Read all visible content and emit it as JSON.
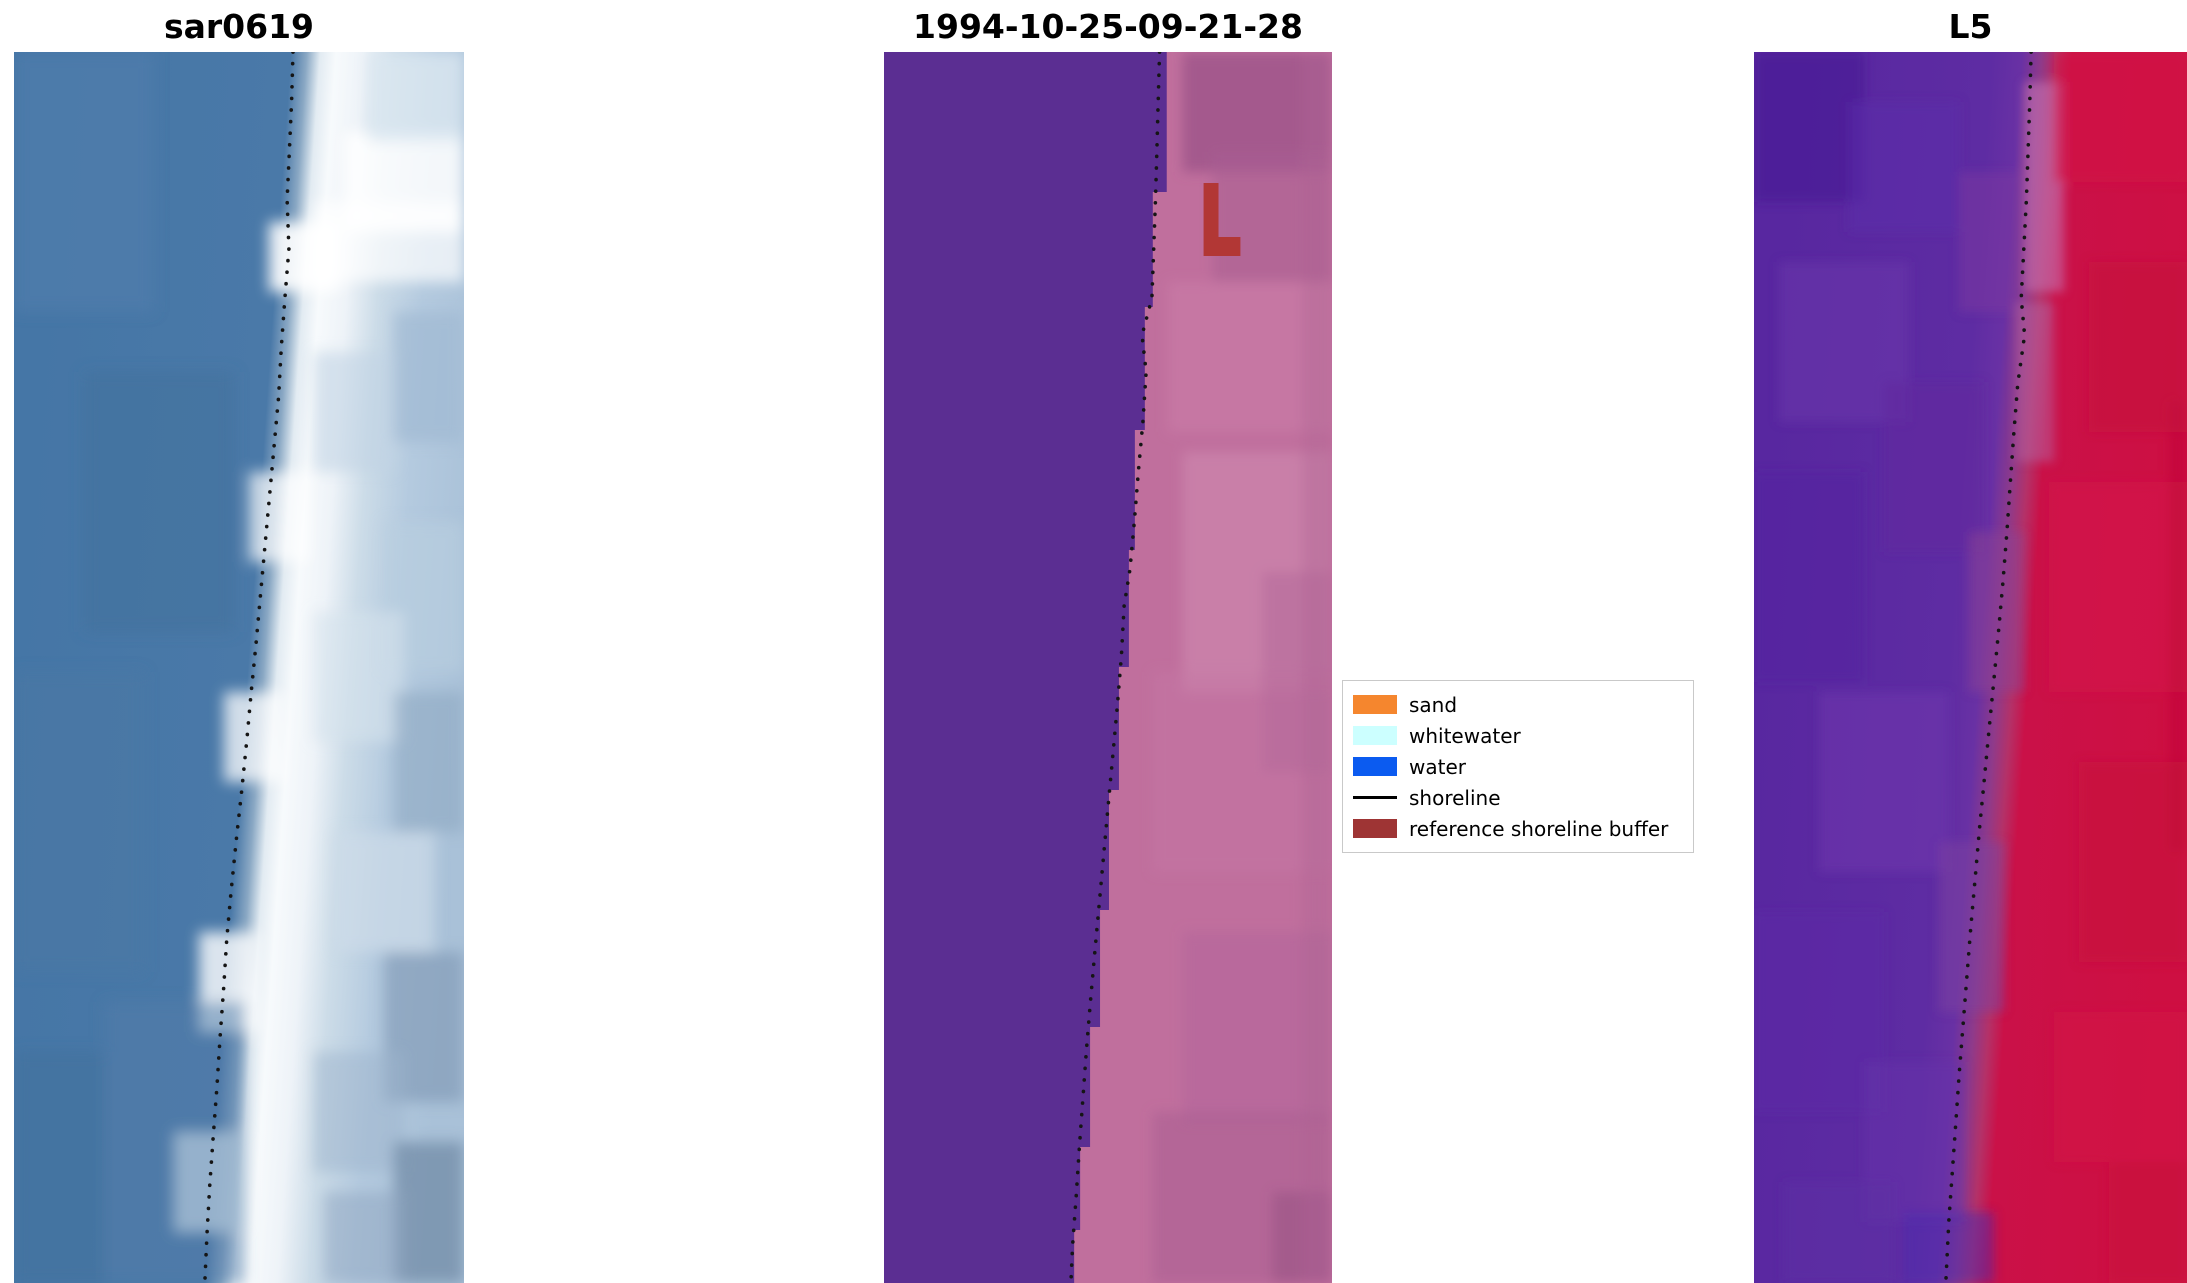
{
  "figure": {
    "background": "#ffffff",
    "panels": [
      {
        "title": "sar0619"
      },
      {
        "title": "1994-10-25-09-21-28"
      },
      {
        "title": "L5"
      }
    ],
    "legend": {
      "items": [
        {
          "label": "sand",
          "color": "#f5862e",
          "kind": "patch"
        },
        {
          "label": "whitewater",
          "color": "#ccffff",
          "kind": "patch"
        },
        {
          "label": "water",
          "color": "#0b5bf0",
          "kind": "patch"
        },
        {
          "label": "shoreline",
          "color": "#000000",
          "kind": "line"
        },
        {
          "label": "reference shoreline buffer",
          "color": "#9e3434",
          "kind": "patch"
        }
      ]
    }
  },
  "chart_data": [
    {
      "type": "heatmap",
      "title": "sar0619",
      "description": "SAR backscatter coastal image; dotted line is the detected shoreline running top to bottom",
      "shoreline_points": [
        [
          0.62,
          0.0
        ],
        [
          0.617,
          0.04
        ],
        [
          0.612,
          0.08
        ],
        [
          0.607,
          0.12
        ],
        [
          0.611,
          0.16
        ],
        [
          0.602,
          0.2
        ],
        [
          0.594,
          0.24
        ],
        [
          0.588,
          0.28
        ],
        [
          0.578,
          0.32
        ],
        [
          0.568,
          0.36
        ],
        [
          0.558,
          0.4
        ],
        [
          0.548,
          0.44
        ],
        [
          0.538,
          0.48
        ],
        [
          0.527,
          0.52
        ],
        [
          0.517,
          0.56
        ],
        [
          0.506,
          0.6
        ],
        [
          0.494,
          0.64
        ],
        [
          0.483,
          0.68
        ],
        [
          0.473,
          0.72
        ],
        [
          0.466,
          0.76
        ],
        [
          0.458,
          0.8
        ],
        [
          0.451,
          0.84
        ],
        [
          0.443,
          0.88
        ],
        [
          0.435,
          0.92
        ],
        [
          0.429,
          0.96
        ],
        [
          0.424,
          1.0
        ]
      ]
    },
    {
      "type": "heatmap",
      "title": "1994-10-25-09-21-28",
      "description": "Classified optical image: purple water class on the left, pink land on the right; dark red mark is the reference shoreline buffer; dotted line is the detected shoreline",
      "legend_entries": [
        "sand",
        "whitewater",
        "water",
        "shoreline",
        "reference shoreline buffer"
      ],
      "shoreline_points": [
        [
          0.615,
          0.0
        ],
        [
          0.612,
          0.04
        ],
        [
          0.609,
          0.08
        ],
        [
          0.606,
          0.12
        ],
        [
          0.602,
          0.16
        ],
        [
          0.598,
          0.2
        ],
        [
          0.576,
          0.23
        ],
        [
          0.585,
          0.26
        ],
        [
          0.578,
          0.3
        ],
        [
          0.568,
          0.34
        ],
        [
          0.559,
          0.38
        ],
        [
          0.549,
          0.42
        ],
        [
          0.536,
          0.45
        ],
        [
          0.53,
          0.49
        ],
        [
          0.521,
          0.53
        ],
        [
          0.511,
          0.57
        ],
        [
          0.501,
          0.61
        ],
        [
          0.491,
          0.65
        ],
        [
          0.481,
          0.69
        ],
        [
          0.471,
          0.73
        ],
        [
          0.461,
          0.77
        ],
        [
          0.452,
          0.81
        ],
        [
          0.444,
          0.85
        ],
        [
          0.436,
          0.89
        ],
        [
          0.429,
          0.93
        ],
        [
          0.421,
          0.97
        ],
        [
          0.417,
          1.0
        ]
      ]
    },
    {
      "type": "heatmap",
      "title": "L5",
      "description": "Landsat 5 false-colour coastal image: purple water left, crimson land right; dotted line is the detected shoreline",
      "shoreline_points": [
        [
          0.64,
          0.0
        ],
        [
          0.637,
          0.04
        ],
        [
          0.633,
          0.08
        ],
        [
          0.629,
          0.12
        ],
        [
          0.623,
          0.16
        ],
        [
          0.617,
          0.2
        ],
        [
          0.625,
          0.23
        ],
        [
          0.609,
          0.27
        ],
        [
          0.6,
          0.31
        ],
        [
          0.592,
          0.35
        ],
        [
          0.584,
          0.39
        ],
        [
          0.575,
          0.43
        ],
        [
          0.565,
          0.47
        ],
        [
          0.554,
          0.51
        ],
        [
          0.543,
          0.55
        ],
        [
          0.532,
          0.59
        ],
        [
          0.521,
          0.63
        ],
        [
          0.511,
          0.67
        ],
        [
          0.501,
          0.71
        ],
        [
          0.492,
          0.75
        ],
        [
          0.483,
          0.79
        ],
        [
          0.474,
          0.83
        ],
        [
          0.466,
          0.87
        ],
        [
          0.458,
          0.91
        ],
        [
          0.45,
          0.95
        ],
        [
          0.443,
          1.0
        ]
      ]
    }
  ]
}
